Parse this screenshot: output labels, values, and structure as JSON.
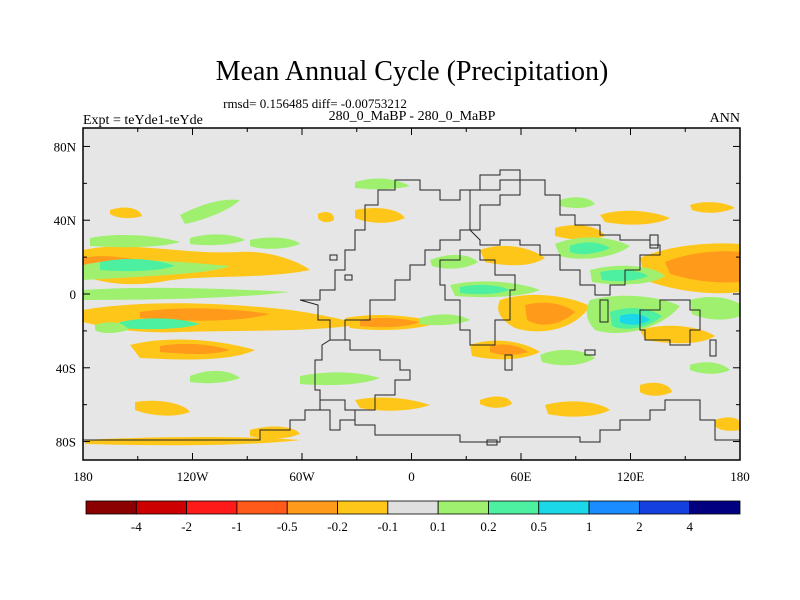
{
  "chart_data": {
    "type": "heatmap",
    "title": "Mean Annual Cycle (Precipitation)",
    "stats": "rmsd= 0.156485 diff= -0.00753212",
    "left_label": "Expt = teYde1-teYde",
    "center_label": "280_0_MaBP - 280_0_MaBP",
    "right_label": "ANN",
    "x_ticks": [
      "180",
      "120W",
      "60W",
      "0",
      "60E",
      "120E",
      "180"
    ],
    "y_ticks": [
      "80N",
      "40N",
      "0",
      "40S",
      "80S"
    ],
    "xlim": [
      -180,
      180
    ],
    "ylim": [
      -90,
      90
    ],
    "colorbar": {
      "labels": [
        "-4",
        "-2",
        "-1",
        "-0.5",
        "-0.2",
        "-0.1",
        "0.1",
        "0.2",
        "0.5",
        "1",
        "2",
        "4"
      ],
      "colors": [
        "#8b0000",
        "#cc0000",
        "#ff1a1a",
        "#ff5a1a",
        "#ff9a1a",
        "#ffc61a",
        "#e0e0e0",
        "#a0f070",
        "#4cf0a0",
        "#1ad8e8",
        "#1a8cff",
        "#1440e0",
        "#000080"
      ]
    },
    "background_color": "#e6e6e6"
  }
}
